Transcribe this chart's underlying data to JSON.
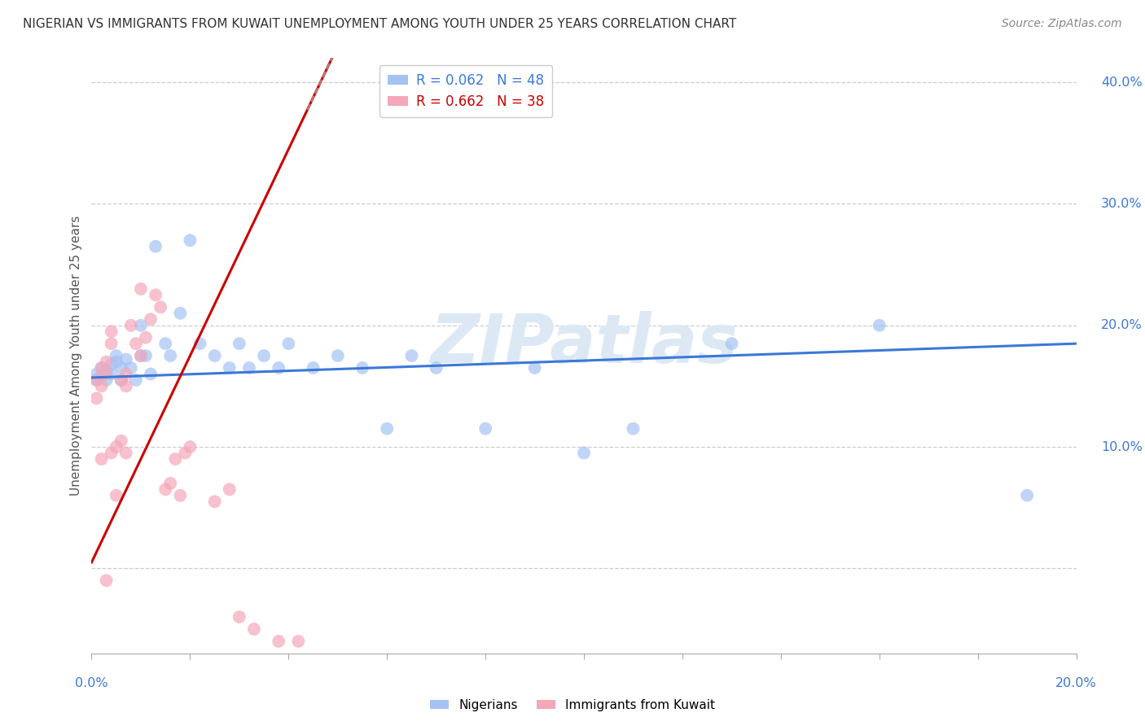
{
  "title": "NIGERIAN VS IMMIGRANTS FROM KUWAIT UNEMPLOYMENT AMONG YOUTH UNDER 25 YEARS CORRELATION CHART",
  "source": "Source: ZipAtlas.com",
  "ylabel": "Unemployment Among Youth under 25 years",
  "legend_label1": "Nigerians",
  "legend_label2": "Immigrants from Kuwait",
  "color_blue": "#a4c2f4",
  "color_pink": "#f4a7b9",
  "color_blue_line": "#3c78d8",
  "color_pink_line": "#cc0000",
  "color_watermark": "#dce9f5",
  "nigerians_x": [
    0.001,
    0.001,
    0.002,
    0.002,
    0.003,
    0.003,
    0.004,
    0.004,
    0.005,
    0.005,
    0.006,
    0.006,
    0.007,
    0.008,
    0.009,
    0.01,
    0.01,
    0.011,
    0.012,
    0.013,
    0.015,
    0.016,
    0.018,
    0.02,
    0.022,
    0.025,
    0.028,
    0.03,
    0.032,
    0.035,
    0.038,
    0.04,
    0.045,
    0.05,
    0.055,
    0.06,
    0.065,
    0.07,
    0.08,
    0.09,
    0.1,
    0.11,
    0.13,
    0.16,
    0.19
  ],
  "nigerians_y": [
    0.155,
    0.16,
    0.158,
    0.165,
    0.155,
    0.163,
    0.16,
    0.168,
    0.17,
    0.175,
    0.155,
    0.165,
    0.172,
    0.165,
    0.155,
    0.2,
    0.175,
    0.175,
    0.16,
    0.265,
    0.185,
    0.175,
    0.21,
    0.27,
    0.185,
    0.175,
    0.165,
    0.185,
    0.165,
    0.175,
    0.165,
    0.185,
    0.165,
    0.175,
    0.165,
    0.115,
    0.175,
    0.165,
    0.115,
    0.165,
    0.095,
    0.115,
    0.185,
    0.2,
    0.06
  ],
  "kuwait_x": [
    0.001,
    0.001,
    0.002,
    0.002,
    0.002,
    0.003,
    0.003,
    0.003,
    0.004,
    0.004,
    0.004,
    0.005,
    0.005,
    0.006,
    0.006,
    0.007,
    0.007,
    0.007,
    0.008,
    0.009,
    0.01,
    0.01,
    0.011,
    0.012,
    0.013,
    0.014,
    0.015,
    0.016,
    0.017,
    0.018,
    0.019,
    0.02,
    0.025,
    0.028,
    0.03,
    0.033,
    0.038,
    0.042
  ],
  "kuwait_y": [
    0.155,
    0.14,
    0.165,
    0.15,
    0.09,
    0.16,
    0.17,
    -0.01,
    0.195,
    0.185,
    0.095,
    0.06,
    0.1,
    0.155,
    0.105,
    0.16,
    0.15,
    0.095,
    0.2,
    0.185,
    0.175,
    0.23,
    0.19,
    0.205,
    0.225,
    0.215,
    0.065,
    0.07,
    0.09,
    0.06,
    0.095,
    0.1,
    0.055,
    0.065,
    -0.04,
    -0.05,
    -0.06,
    -0.06
  ],
  "xlim": [
    0.0,
    0.2
  ],
  "ylim": [
    -0.07,
    0.42
  ],
  "ytick_vals": [
    0.1,
    0.2,
    0.3,
    0.4
  ],
  "ytick_labels": [
    "10.0%",
    "20.0%",
    "30.0%",
    "40.0%"
  ],
  "xtick_vals": [
    0.0,
    0.02,
    0.04,
    0.06,
    0.08,
    0.1,
    0.12,
    0.14,
    0.16,
    0.18,
    0.2
  ],
  "blue_line_start_y": 0.157,
  "blue_line_end_y": 0.185,
  "pink_line_intercept": 0.005,
  "pink_line_slope": 8.5,
  "pink_dashed_color": "#aaaaaa"
}
